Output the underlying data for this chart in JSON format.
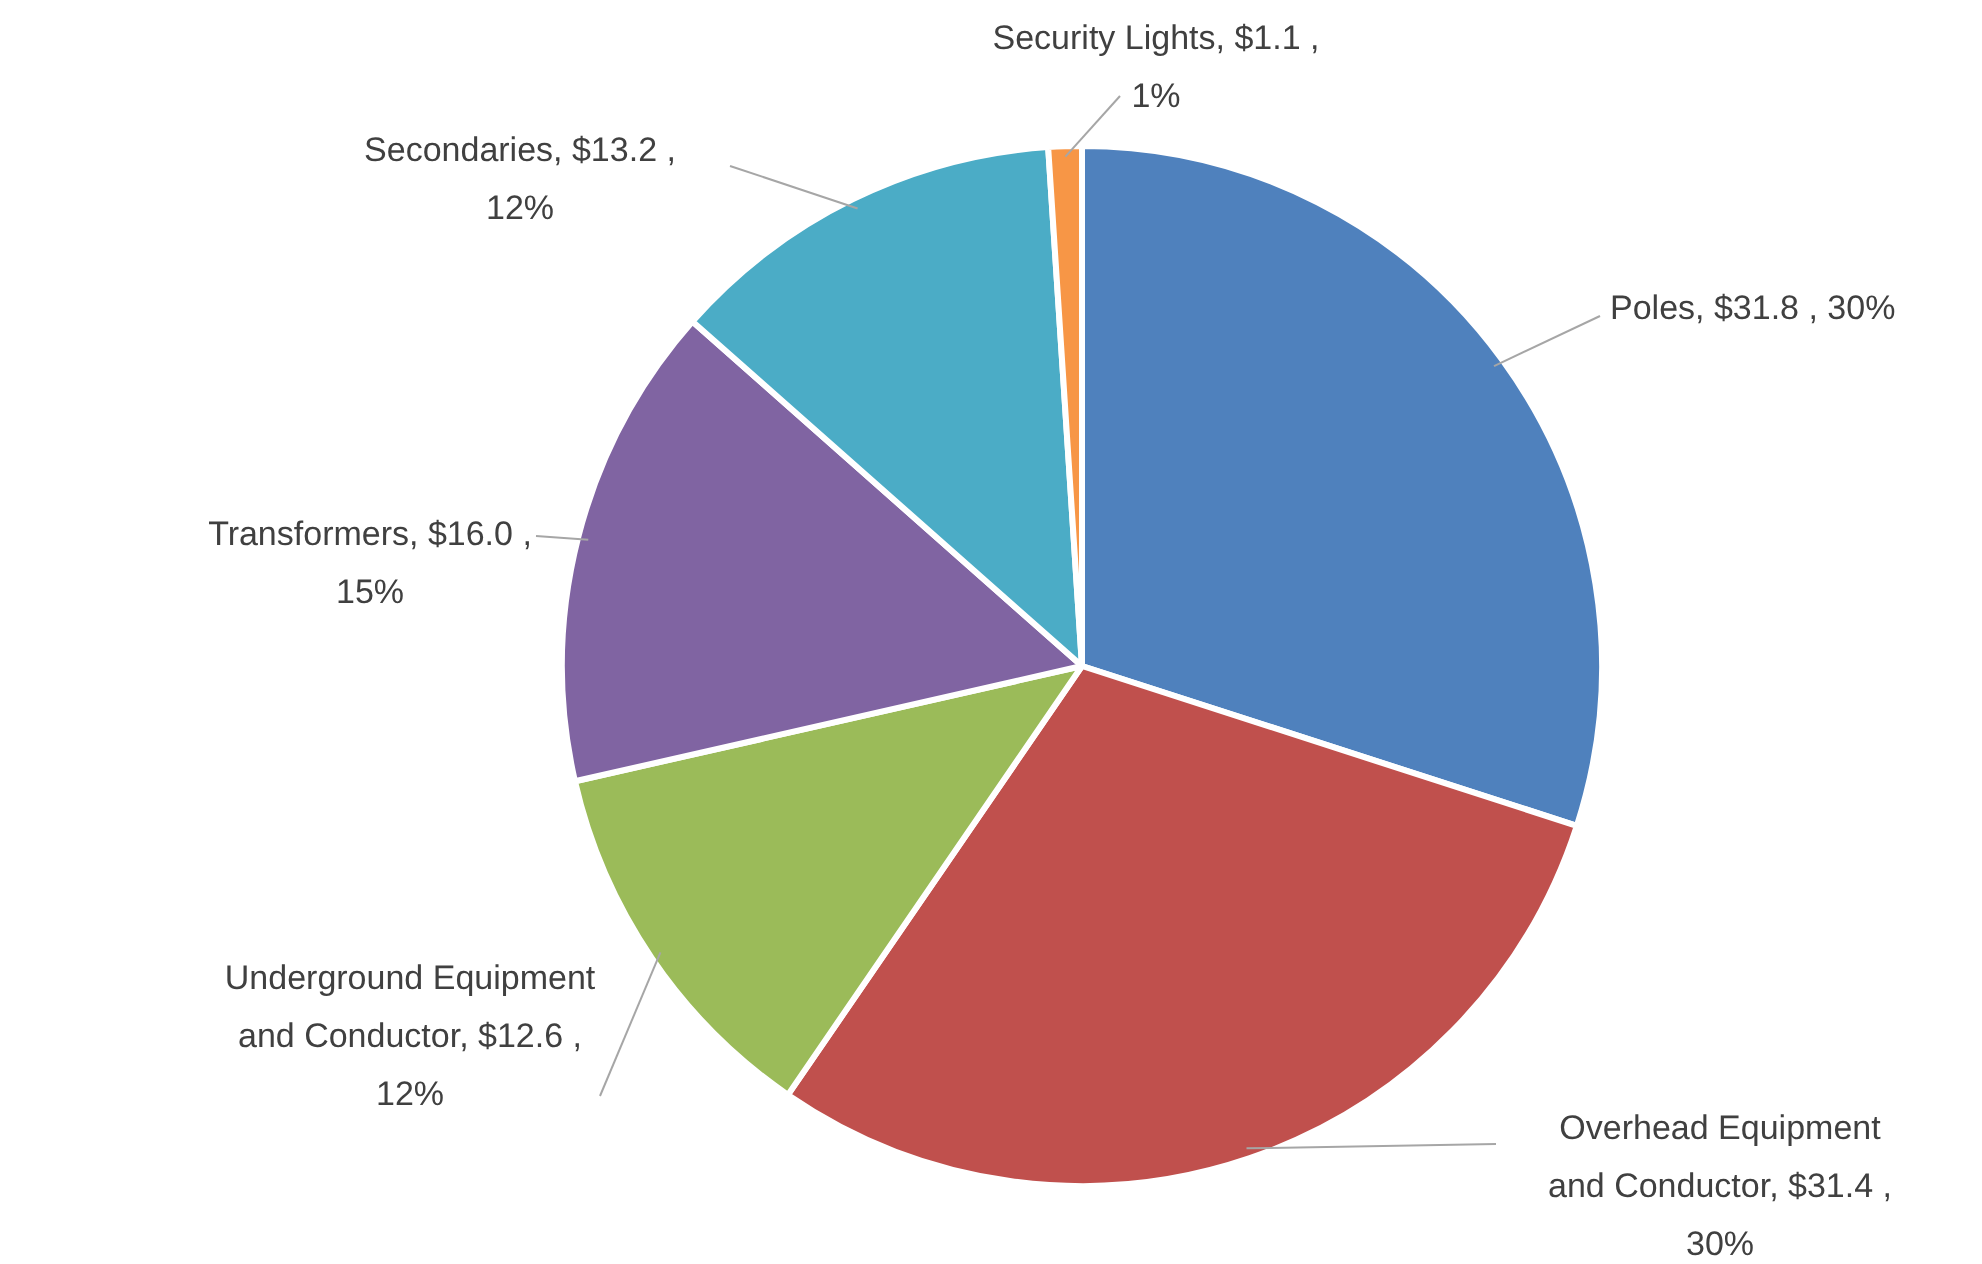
{
  "chart_data": {
    "type": "pie",
    "categories": [
      "Poles",
      "Overhead Equipment and Conductor",
      "Underground Equipment and Conductor",
      "Transformers",
      "Secondaries",
      "Security Lights"
    ],
    "values": [
      31.8,
      31.4,
      12.6,
      16.0,
      13.2,
      1.1
    ],
    "value_labels": [
      "$31.8 , 30%",
      "$31.4 , 30%",
      "$12.6 , 12%",
      "$16.0 , 15%",
      "$13.2 , 12%",
      "$1.1 , 1%"
    ],
    "colors": [
      "#4f81bd",
      "#c0504d",
      "#9bbb59",
      "#8064a2",
      "#4bacc6",
      "#f79646"
    ],
    "legend": false
  }
}
